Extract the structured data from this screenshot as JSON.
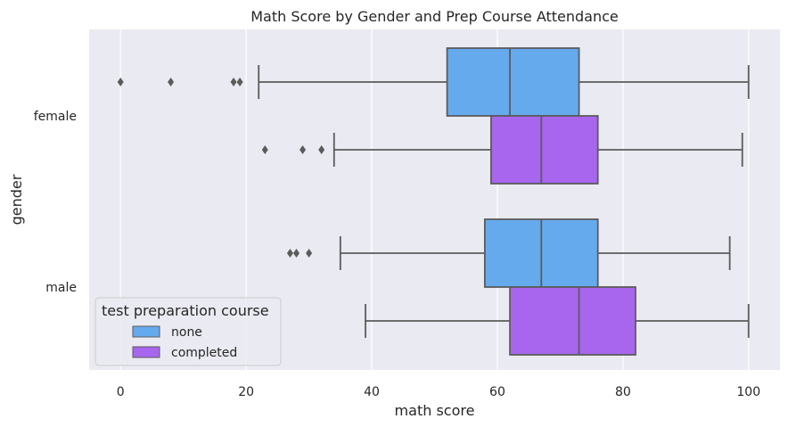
{
  "chart_data": {
    "type": "boxplot",
    "orientation": "horizontal",
    "title": "Math Score by Gender and Prep Course Attendance",
    "xlabel": "math score",
    "ylabel": "gender",
    "xlim": [
      -5,
      105
    ],
    "xticks": [
      0,
      20,
      40,
      60,
      80,
      100
    ],
    "categories": [
      "female",
      "male"
    ],
    "grid": true,
    "legend": {
      "title": "test preparation course",
      "placement": "lower-left"
    },
    "series": [
      {
        "name": "none",
        "color": "#66aaee",
        "boxes": [
          {
            "category": "female",
            "whisker_low": 22,
            "q1": 52,
            "median": 62,
            "q3": 73,
            "whisker_high": 100,
            "outliers": [
              0,
              8,
              18,
              19
            ]
          },
          {
            "category": "male",
            "whisker_low": 35,
            "q1": 58,
            "median": 67,
            "q3": 76,
            "whisker_high": 97,
            "outliers": [
              27,
              28,
              30
            ]
          }
        ]
      },
      {
        "name": "completed",
        "color": "#a866ee",
        "boxes": [
          {
            "category": "female",
            "whisker_low": 34,
            "q1": 59,
            "median": 67,
            "q3": 76,
            "whisker_high": 99,
            "outliers": [
              23,
              29,
              32
            ]
          },
          {
            "category": "male",
            "whisker_low": 39,
            "q1": 62,
            "median": 73,
            "q3": 82,
            "whisker_high": 100,
            "outliers": []
          }
        ]
      }
    ]
  }
}
